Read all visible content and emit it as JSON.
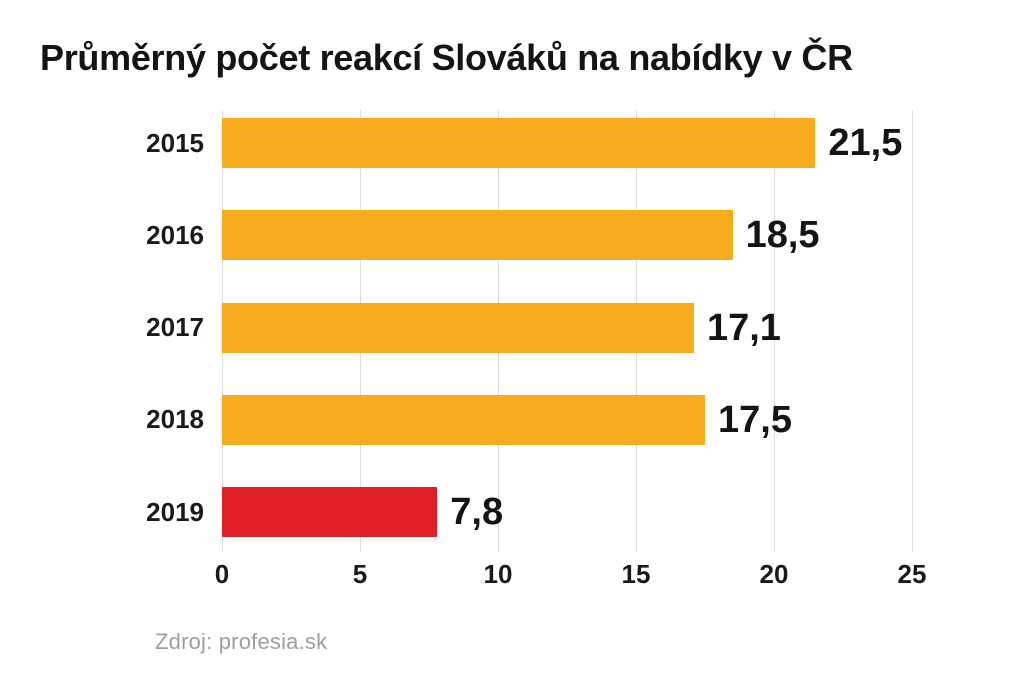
{
  "title": "Průměrný počet reakcí Slováků na nabídky v ČR",
  "source": "Zdroj: profesia.sk",
  "colors": {
    "background": "#FFFFFF",
    "bar_default": "#F7AC1D",
    "bar_highlight": "#E01F26",
    "gridline": "#DCDCDC",
    "text": "#1A1A1A",
    "source_text": "#9E9E9E"
  },
  "chart_data": {
    "type": "bar",
    "orientation": "horizontal",
    "title": "Průměrný počet reakcí Slováků na nabídky v ČR",
    "categories": [
      "2015",
      "2016",
      "2017",
      "2018",
      "2019"
    ],
    "values": [
      21.5,
      18.5,
      17.1,
      17.5,
      7.8
    ],
    "value_labels": [
      "21,5",
      "18,5",
      "17,1",
      "17,5",
      "7,8"
    ],
    "bar_colors": [
      "#F7AC1D",
      "#F7AC1D",
      "#F7AC1D",
      "#F7AC1D",
      "#E01F26"
    ],
    "xlabel": "",
    "ylabel": "",
    "xlim": [
      0,
      25
    ],
    "x_ticks": [
      "0",
      "5",
      "10",
      "15",
      "20",
      "25"
    ],
    "grid": "vertical-gridlines-on",
    "legend": "none",
    "data_labels_position": "outside-end",
    "source": "Zdroj: profesia.sk"
  }
}
